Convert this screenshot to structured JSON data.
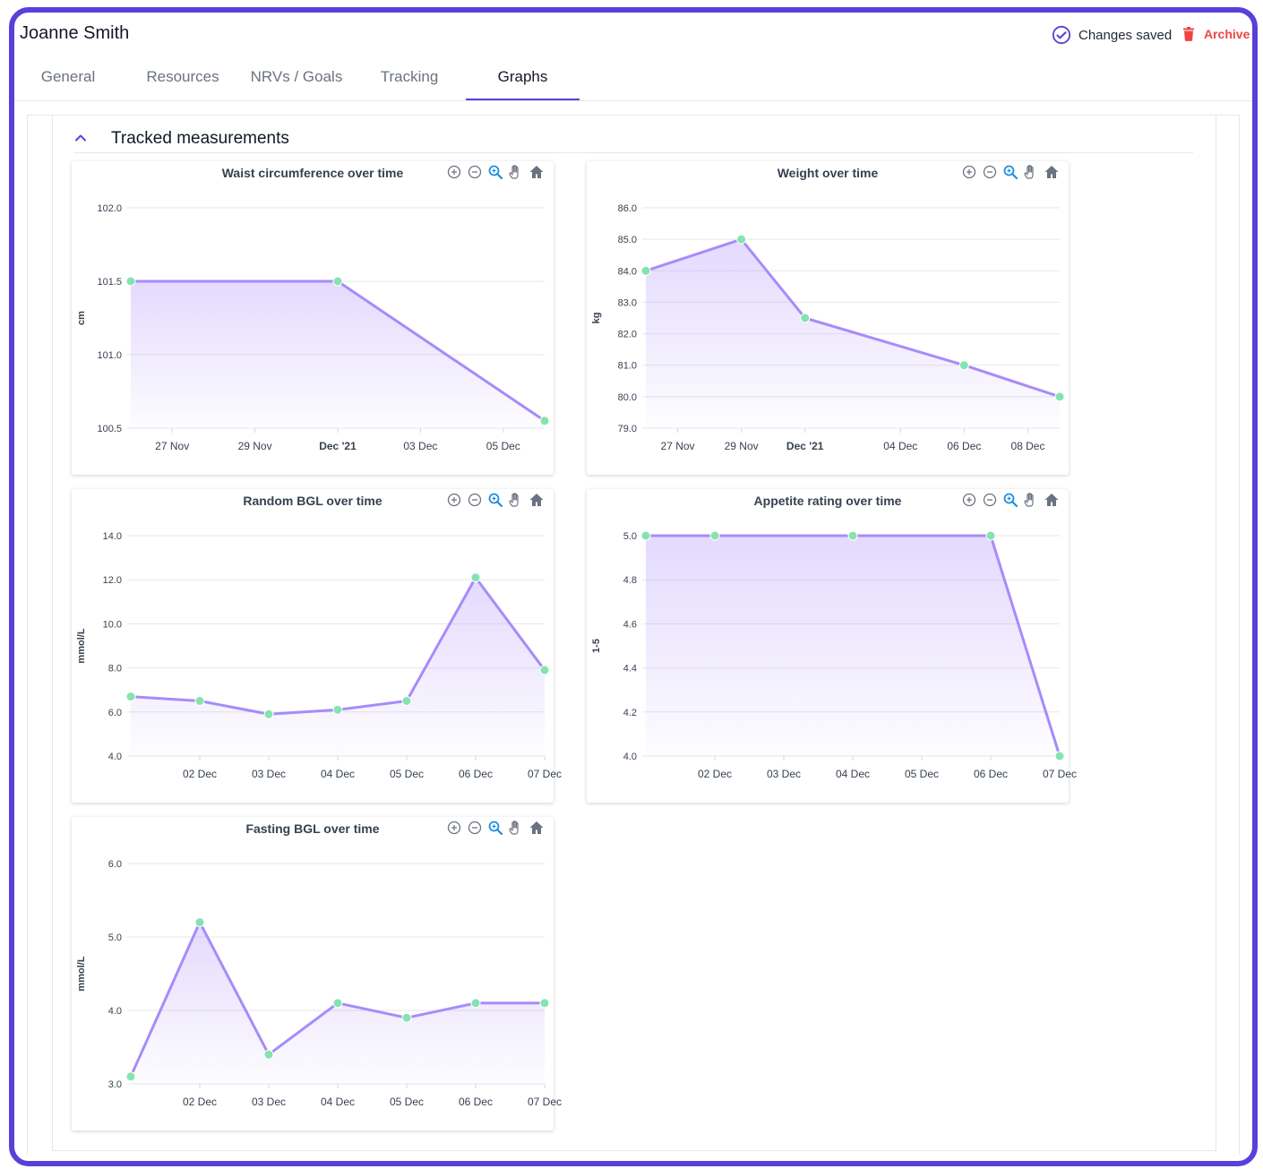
{
  "header": {
    "title": "Joanne Smith",
    "status_text": "Changes saved",
    "archive_label": "Archive"
  },
  "tabs": [
    {
      "label": "General",
      "active": false
    },
    {
      "label": "Resources",
      "active": false
    },
    {
      "label": "NRVs / Goals",
      "active": false
    },
    {
      "label": "Tracking",
      "active": false
    },
    {
      "label": "Graphs",
      "active": true
    }
  ],
  "section": {
    "title": "Tracked measurements"
  },
  "colors": {
    "accent": "#5b3fd9",
    "line": "#a78bfa",
    "marker": "#86e3b0",
    "danger": "#ef4444",
    "zoom_icon": "#1d8fe0"
  },
  "toolbar_icons": [
    "zoom-in-icon",
    "zoom-out-icon",
    "zoom-select-icon",
    "pan-hand-icon",
    "reset-home-icon"
  ],
  "chart_data": [
    {
      "type": "area",
      "title": "Waist circumference over time",
      "ylabel": "cm",
      "ylim": [
        100.5,
        102.0
      ],
      "yticks": [
        "100.5",
        "101.0",
        "101.5",
        "102.0"
      ],
      "xticks": [
        "27 Nov",
        "29 Nov",
        "Dec '21",
        "03 Dec",
        "05 Dec"
      ],
      "x": [
        "26 Nov",
        "01 Dec",
        "06 Dec"
      ],
      "values": [
        101.5,
        101.5,
        100.55
      ]
    },
    {
      "type": "area",
      "title": "Weight over time",
      "ylabel": "kg",
      "ylim": [
        79.0,
        86.0
      ],
      "yticks": [
        "79.0",
        "80.0",
        "81.0",
        "82.0",
        "83.0",
        "84.0",
        "85.0",
        "86.0"
      ],
      "xticks": [
        "27 Nov",
        "29 Nov",
        "Dec '21",
        "04 Dec",
        "06 Dec",
        "08 Dec"
      ],
      "x": [
        "26 Nov",
        "29 Nov",
        "01 Dec",
        "06 Dec",
        "09 Dec"
      ],
      "values": [
        84.0,
        85.0,
        82.5,
        81.0,
        80.0
      ]
    },
    {
      "type": "area",
      "title": "Random BGL over time",
      "ylabel": "mmol/L",
      "ylim": [
        4.0,
        14.0
      ],
      "yticks": [
        "4.0",
        "6.0",
        "8.0",
        "10.0",
        "12.0",
        "14.0"
      ],
      "xticks": [
        "02 Dec",
        "03 Dec",
        "04 Dec",
        "05 Dec",
        "06 Dec",
        "07 Dec"
      ],
      "x": [
        "01 Dec",
        "02 Dec",
        "03 Dec",
        "04 Dec",
        "05 Dec",
        "06 Dec",
        "07 Dec"
      ],
      "values": [
        6.7,
        6.5,
        5.9,
        6.1,
        6.5,
        12.1,
        7.9
      ]
    },
    {
      "type": "area",
      "title": "Appetite rating over time",
      "ylabel": "1-5",
      "ylim": [
        4.0,
        5.0
      ],
      "yticks": [
        "4.0",
        "4.2",
        "4.4",
        "4.6",
        "4.8",
        "5.0"
      ],
      "xticks": [
        "02 Dec",
        "03 Dec",
        "04 Dec",
        "05 Dec",
        "06 Dec",
        "07 Dec"
      ],
      "x": [
        "01 Dec",
        "02 Dec",
        "04 Dec",
        "06 Dec",
        "07 Dec"
      ],
      "values": [
        5.0,
        5.0,
        5.0,
        5.0,
        4.0
      ]
    },
    {
      "type": "area",
      "title": "Fasting BGL over time",
      "ylabel": "mmol/L",
      "ylim": [
        3.0,
        6.0
      ],
      "yticks": [
        "3.0",
        "4.0",
        "5.0",
        "6.0"
      ],
      "xticks": [
        "02 Dec",
        "03 Dec",
        "04 Dec",
        "05 Dec",
        "06 Dec",
        "07 Dec"
      ],
      "x": [
        "01 Dec",
        "02 Dec",
        "03 Dec",
        "04 Dec",
        "05 Dec",
        "06 Dec",
        "07 Dec"
      ],
      "values": [
        3.1,
        5.2,
        3.4,
        4.1,
        3.9,
        4.1,
        4.1
      ]
    }
  ]
}
